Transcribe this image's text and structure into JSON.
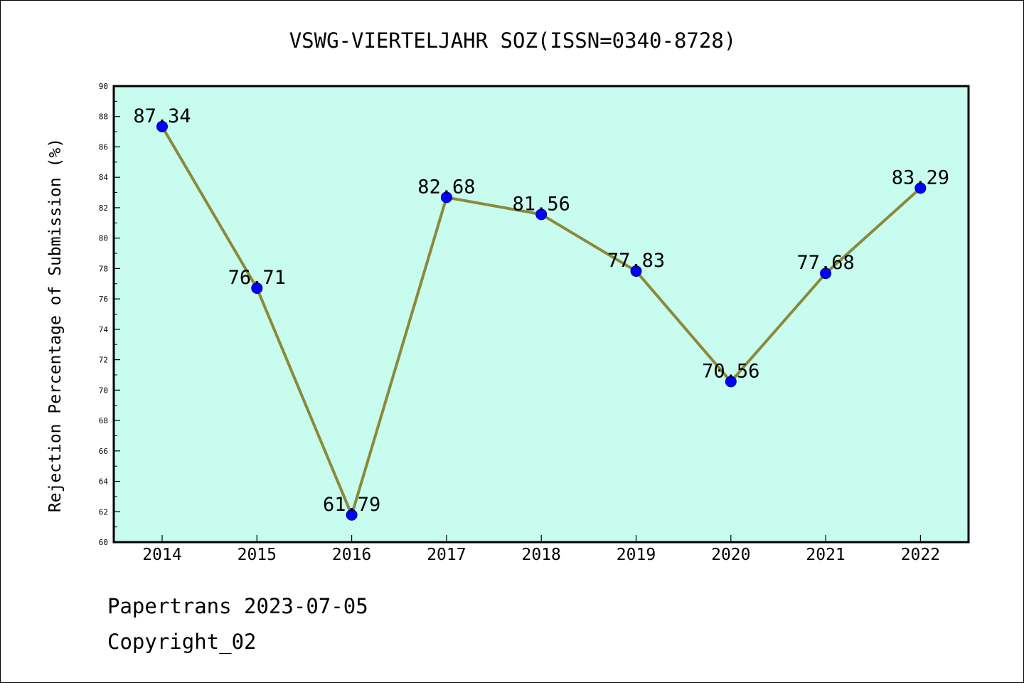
{
  "chart_data": {
    "type": "line",
    "title": "VSWG-VIERTELJAHR SOZ(ISSN=0340-8728)",
    "xlabel": "",
    "ylabel": "Rejection Percentage of Submission (%)",
    "categories": [
      "2014",
      "2015",
      "2016",
      "2017",
      "2018",
      "2019",
      "2020",
      "2021",
      "2022"
    ],
    "values": [
      87.34,
      76.71,
      61.79,
      82.68,
      81.56,
      77.83,
      70.56,
      77.68,
      83.29
    ],
    "data_labels": [
      "87.34",
      "76.71",
      "61.79",
      "82.68",
      "81.56",
      "77.83",
      "70.56",
      "77.68",
      "83.29"
    ],
    "ylim": [
      60,
      90
    ],
    "yticks": [
      60,
      62,
      64,
      66,
      68,
      70,
      72,
      74,
      76,
      78,
      80,
      82,
      84,
      86,
      88,
      90
    ],
    "ytick_labels": [
      "60",
      "62",
      "64",
      "66",
      "68",
      "70",
      "72",
      "74",
      "76",
      "78",
      "80",
      "82",
      "84",
      "86",
      "88",
      "90"
    ],
    "grid": false,
    "colors": {
      "plot_background": "#c8fcee",
      "line": "#8b8a3a",
      "marker": "#0000ff",
      "marker_edge": "#00008b",
      "axis": "#000000"
    }
  },
  "footer": {
    "line1": "Papertrans 2023-07-05",
    "line2": "Copyright_02"
  }
}
